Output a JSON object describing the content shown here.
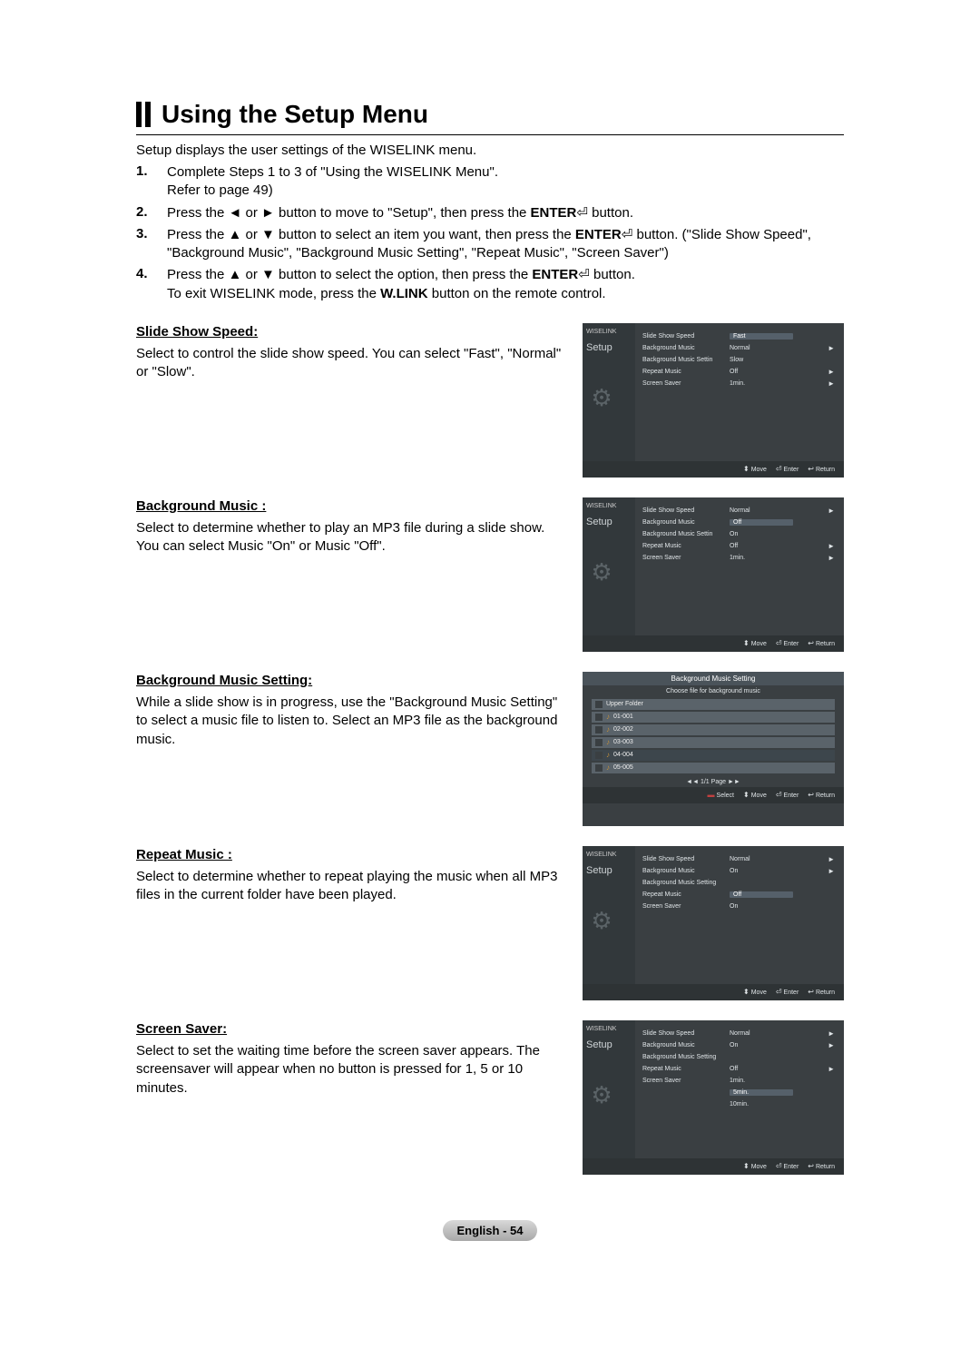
{
  "title": "Using the Setup Menu",
  "intro": "Setup displays the user settings of the WISELINK menu.",
  "steps": [
    {
      "num": "1.",
      "text": "Complete Steps 1 to 3 of \"Using the WISELINK Menu\".\nRefer to page 49)"
    },
    {
      "num": "2.",
      "text": "Press the ◄ or ► button to move to \"Setup\", then press the ENTER⏎ button."
    },
    {
      "num": "3.",
      "text": "Press the ▲ or ▼ button to select an item you want, then press the ENTER⏎ button. (\"Slide Show Speed\",  \"Background Music\", \"Background Music Setting\", \"Repeat Music\", \"Screen Saver\")"
    },
    {
      "num": "4.",
      "text": "Press the ▲ or ▼ button to select the option, then press the ENTER⏎ button.\nTo exit WISELINK mode, press the W.LINK button on the remote control."
    }
  ],
  "sections": [
    {
      "head": "Slide Show Speed:",
      "body": "Select to control the slide show speed. You can select \"Fast\", \"Normal\" or \"Slow\"."
    },
    {
      "head": "Background Music :",
      "body": "Select to determine whether to play an MP3 file during a slide show. You can select Music \"On\" or Music \"Off\"."
    },
    {
      "head": "Background Music Setting:",
      "body": "While a slide show is in progress, use the \"Background Music Setting\" to select a music file to listen to. Select an MP3 file as the background music."
    },
    {
      "head": "Repeat Music :",
      "body": "Select to determine whether to repeat playing the music when all MP3 files in the current folder have been played."
    },
    {
      "head": "Screen Saver:",
      "body": "Select to set the waiting time before the screen saver appears. The screensaver will appear when no button is pressed for 1, 5 or 10 minutes."
    }
  ],
  "tv_common": {
    "brand": "WISELINK",
    "setup": "Setup",
    "footer_move": "Move",
    "footer_enter": "Enter",
    "footer_return": "Return",
    "footer_select": "Select",
    "gear": "⚙"
  },
  "tv1": {
    "rows": [
      {
        "label": "Slide Show Speed",
        "val": "Fast",
        "boxed": true,
        "arrow": false
      },
      {
        "label": "Background Music",
        "val": "Normal",
        "boxed": false,
        "arrow": true
      },
      {
        "label": "Background Music Settin",
        "val": "Slow",
        "boxed": false,
        "arrow": false
      },
      {
        "label": "Repeat Music",
        "val": "Off",
        "boxed": false,
        "arrow": true
      },
      {
        "label": "Screen Saver",
        "val": "1min.",
        "boxed": false,
        "arrow": true
      }
    ]
  },
  "tv2": {
    "rows": [
      {
        "label": "Slide Show Speed",
        "val": "Normal",
        "boxed": false,
        "arrow": true
      },
      {
        "label": "Background Music",
        "val": "Off",
        "boxed": true,
        "arrow": false
      },
      {
        "label": "Background Music Settin",
        "val": "On",
        "boxed": false,
        "arrow": false
      },
      {
        "label": "Repeat Music",
        "val": "Off",
        "boxed": false,
        "arrow": true
      },
      {
        "label": "Screen Saver",
        "val": "1min.",
        "boxed": false,
        "arrow": true
      }
    ]
  },
  "tv3": {
    "title": "Background Music Setting",
    "sub": "Choose file for background music",
    "files": [
      {
        "name": "Upper Folder",
        "note": false,
        "sel": false
      },
      {
        "name": "01-001",
        "note": true,
        "sel": false
      },
      {
        "name": "02-002",
        "note": true,
        "sel": false
      },
      {
        "name": "03-003",
        "note": true,
        "sel": false
      },
      {
        "name": "04-004",
        "note": true,
        "sel": true
      },
      {
        "name": "05-005",
        "note": true,
        "sel": false
      }
    ],
    "page": "◄◄ 1/1 Page ►►"
  },
  "tv4": {
    "rows": [
      {
        "label": "Slide Show Speed",
        "val": "Normal",
        "boxed": false,
        "arrow": true
      },
      {
        "label": "Background Music",
        "val": "On",
        "boxed": false,
        "arrow": true
      },
      {
        "label": "Background Music Setting",
        "val": "",
        "boxed": false,
        "arrow": false
      },
      {
        "label": "Repeat Music",
        "val": "Off",
        "boxed": true,
        "arrow": false
      },
      {
        "label": "Screen Saver",
        "val": "On",
        "boxed": false,
        "arrow": false
      }
    ]
  },
  "tv5": {
    "rows": [
      {
        "label": "Slide Show Speed",
        "val": "Normal",
        "boxed": false,
        "arrow": true
      },
      {
        "label": "Background Music",
        "val": "On",
        "boxed": false,
        "arrow": true
      },
      {
        "label": "Background Music Setting",
        "val": "",
        "boxed": false,
        "arrow": false
      },
      {
        "label": "Repeat Music",
        "val": "Off",
        "boxed": false,
        "arrow": true
      },
      {
        "label": "Screen Saver",
        "val": "1min.",
        "boxed": false,
        "arrow": false
      },
      {
        "label": "",
        "val": "5min.",
        "boxed": true,
        "arrow": false
      },
      {
        "label": "",
        "val": "10min.",
        "boxed": false,
        "arrow": false
      }
    ]
  },
  "pagenum": "English - 54"
}
